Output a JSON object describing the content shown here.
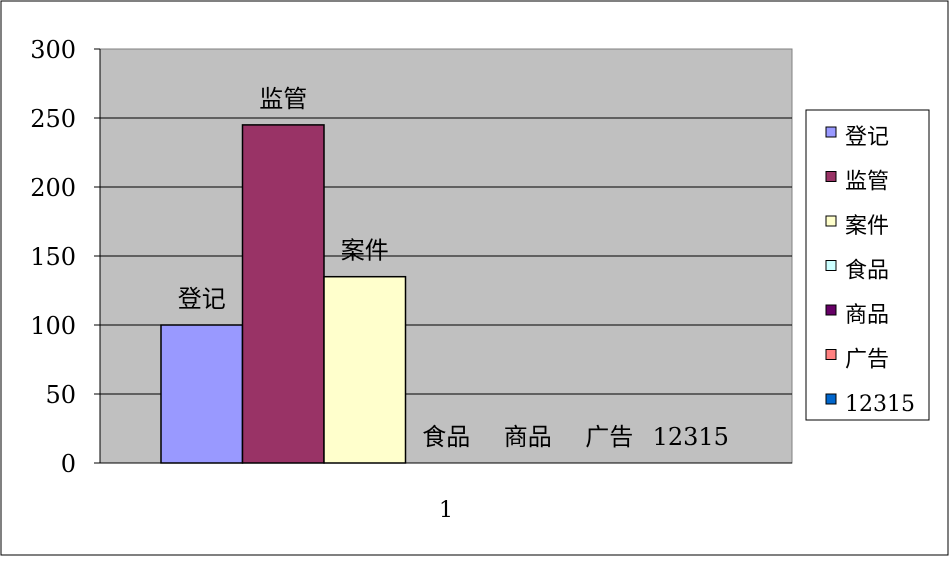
{
  "chart_data": {
    "type": "bar",
    "categories": [
      "1"
    ],
    "series": [
      {
        "name": "登记",
        "values": [
          100
        ],
        "color": "#9999FF"
      },
      {
        "name": "监管",
        "values": [
          245
        ],
        "color": "#993366"
      },
      {
        "name": "案件",
        "values": [
          135
        ],
        "color": "#FFFFCC"
      },
      {
        "name": "食品",
        "values": [
          0
        ],
        "color": "#CCFFFF"
      },
      {
        "name": "商品",
        "values": [
          0
        ],
        "color": "#660066"
      },
      {
        "name": "广告",
        "values": [
          0
        ],
        "color": "#FF8080"
      },
      {
        "name": "12315",
        "values": [
          0
        ],
        "color": "#0066CC"
      }
    ],
    "data_labels": [
      "登记",
      "监管",
      "案件",
      "食品",
      "商品",
      "广告",
      "12315"
    ],
    "ylim": [
      0,
      300
    ],
    "yticks": [
      0,
      50,
      100,
      150,
      200,
      250,
      300
    ],
    "grid": true,
    "legend_position": "right",
    "plot_background": "#C0C0C0"
  }
}
